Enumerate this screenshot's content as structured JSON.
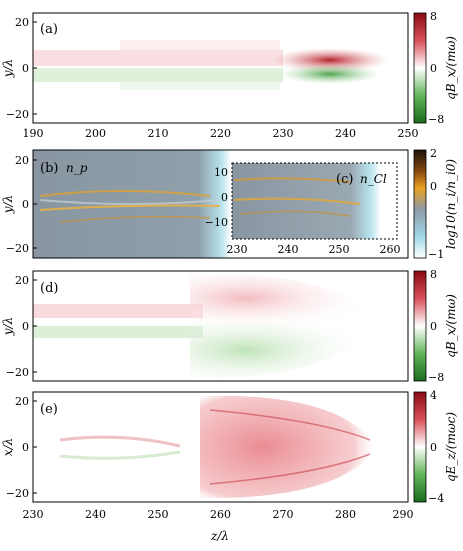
{
  "figure": {
    "panels": [
      {
        "id": "a",
        "label": "(a)",
        "ylabel": "y/λ",
        "cbar_label": "qB_x/(mω)",
        "cbar_ticks": [
          "8",
          "0",
          "−8"
        ],
        "colormap": "red-green"
      },
      {
        "id": "b",
        "label": "(b)",
        "sublabel": "n_p",
        "ylabel": "y/λ",
        "cbar_label": "log10(n_i/n_i0)",
        "cbar_ticks": [
          "2",
          "0",
          "−1"
        ],
        "colormap": "density"
      },
      {
        "id": "c",
        "label": "(c)",
        "sublabel": "n_Cl"
      },
      {
        "id": "d",
        "label": "(d)",
        "ylabel": "y/λ",
        "cbar_label": "qB_x/(mω)",
        "cbar_ticks": [
          "8",
          "0",
          "−8"
        ],
        "colormap": "red-green"
      },
      {
        "id": "e",
        "label": "(e)",
        "ylabel": "x/λ",
        "xlabel": "z/λ",
        "cbar_label": "qE_z/(mωc)",
        "cbar_ticks": [
          "4",
          "0",
          "−4"
        ],
        "colormap": "red-green"
      }
    ]
  },
  "chart_data": [
    {
      "type": "heatmap",
      "panel": "a",
      "xlim": [
        190,
        250
      ],
      "ylim": [
        -25,
        25
      ],
      "x_ticks": [
        "190",
        "200",
        "210",
        "220",
        "230",
        "240",
        "250"
      ],
      "y_ticks": [
        "20",
        "0",
        "−20"
      ],
      "color_range": [
        -8,
        8
      ]
    },
    {
      "type": "heatmap",
      "panel": "b",
      "xlim": [
        230,
        290
      ],
      "ylim": [
        -25,
        25
      ],
      "y_ticks": [
        "20",
        "0",
        "−20"
      ],
      "color_range": [
        -1,
        2
      ]
    },
    {
      "type": "heatmap",
      "panel": "c",
      "xlim": [
        230,
        260
      ],
      "ylim": [
        -15,
        15
      ],
      "x_ticks": [
        "230",
        "240",
        "250",
        "260"
      ],
      "y_ticks": [
        "10",
        "0",
        "−10"
      ]
    },
    {
      "type": "heatmap",
      "panel": "d",
      "xlim": [
        230,
        290
      ],
      "ylim": [
        -25,
        25
      ],
      "y_ticks": [
        "20",
        "0",
        "−20"
      ],
      "color_range": [
        -8,
        8
      ]
    },
    {
      "type": "heatmap",
      "panel": "e",
      "xlim": [
        230,
        290
      ],
      "ylim": [
        -25,
        25
      ],
      "x_ticks": [
        "230",
        "240",
        "250",
        "260",
        "270",
        "280",
        "290"
      ],
      "y_ticks": [
        "20",
        "0",
        "−20"
      ],
      "color_range": [
        -4,
        4
      ]
    }
  ]
}
